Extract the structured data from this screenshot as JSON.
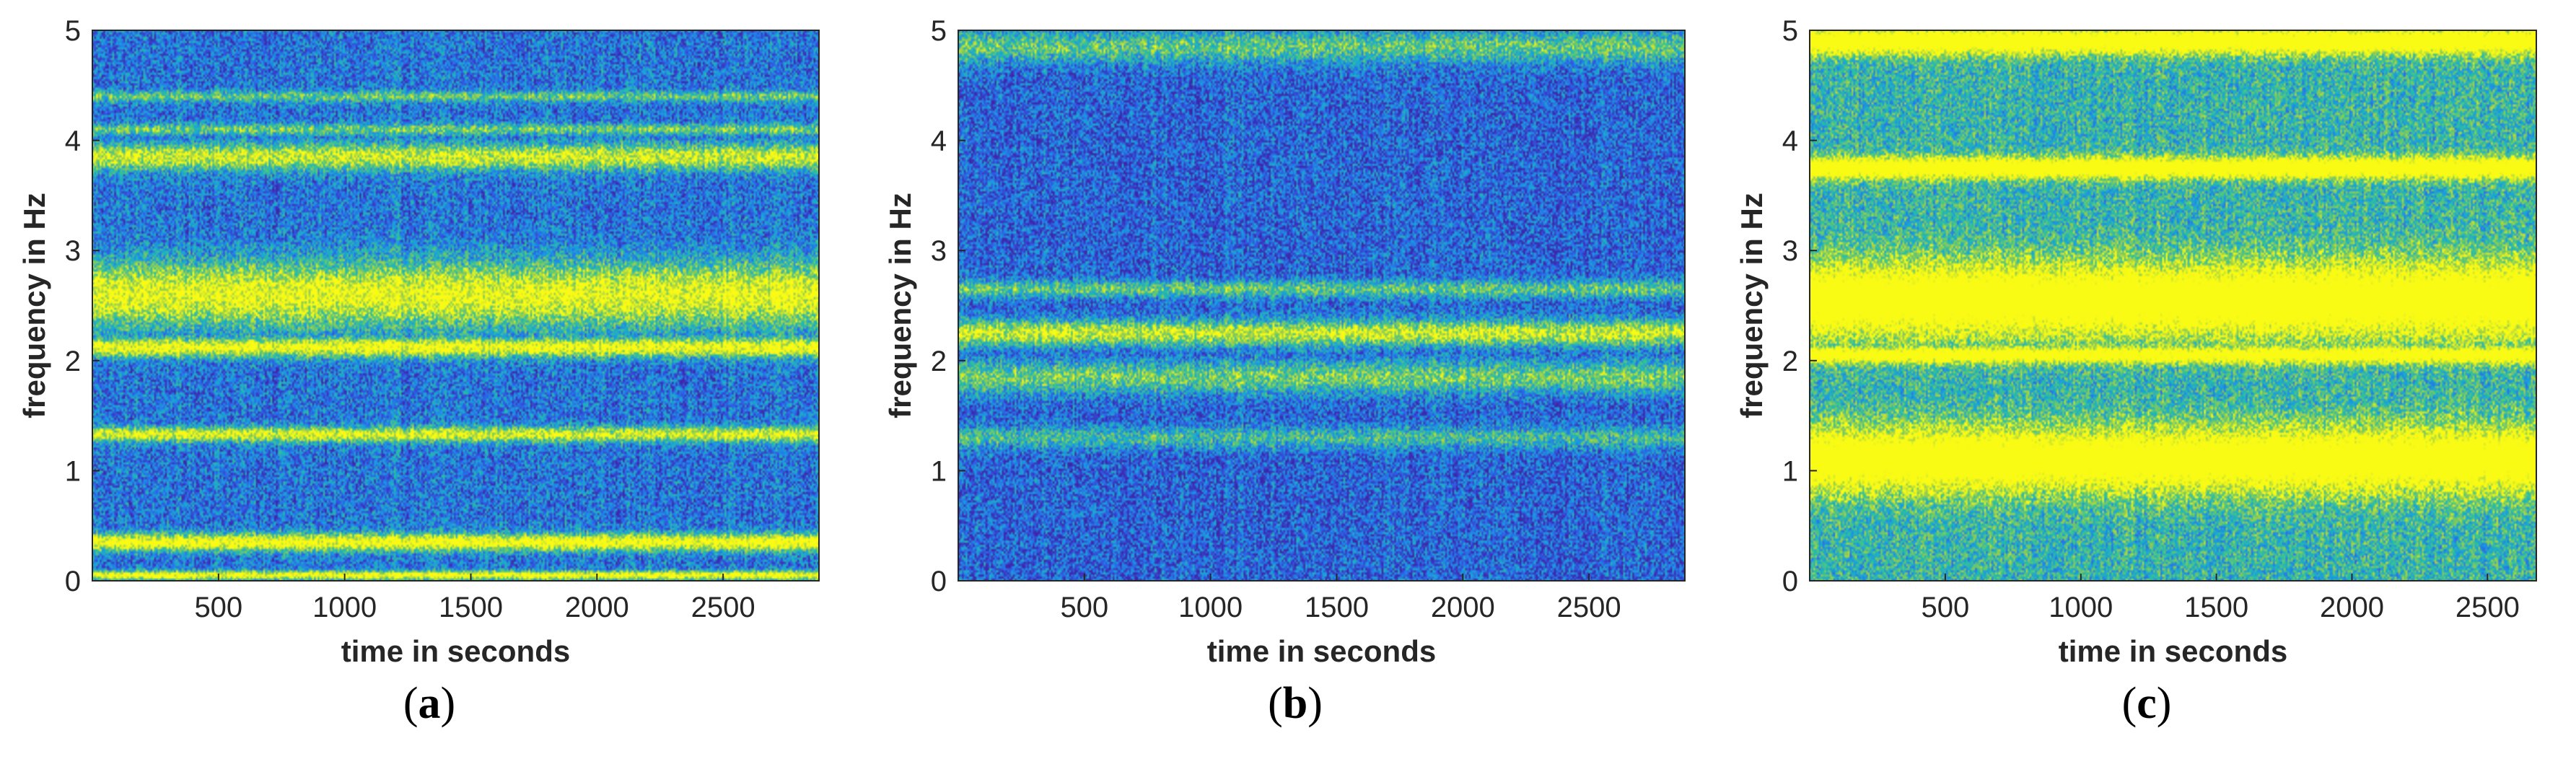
{
  "chart_data": [
    {
      "type": "heatmap",
      "caption_letter": "a",
      "xlabel": "time in seconds",
      "ylabel": "frequency in Hz",
      "xlim": [
        0,
        2880
      ],
      "ylim": [
        0,
        5
      ],
      "xticks": [
        500,
        1000,
        1500,
        2000,
        2500
      ],
      "yticks": [
        0,
        1,
        2,
        3,
        4,
        5
      ],
      "colormap": [
        "#3d26a8",
        "#2f5de6",
        "#1a9ce0",
        "#2cbfa0",
        "#95cc4e",
        "#f9fb15"
      ],
      "background_level": 0.28,
      "bands": [
        {
          "freq": 0.05,
          "width": 0.04,
          "intensity": 1.0
        },
        {
          "freq": 0.35,
          "width": 0.08,
          "intensity": 1.0
        },
        {
          "freq": 1.33,
          "width": 0.07,
          "intensity": 0.85
        },
        {
          "freq": 2.12,
          "width": 0.09,
          "intensity": 0.95
        },
        {
          "freq": 2.6,
          "width": 0.3,
          "intensity": 0.9
        },
        {
          "freq": 3.85,
          "width": 0.12,
          "intensity": 0.8
        },
        {
          "freq": 4.1,
          "width": 0.05,
          "intensity": 0.55
        },
        {
          "freq": 4.4,
          "width": 0.05,
          "intensity": 0.5
        }
      ]
    },
    {
      "type": "heatmap",
      "caption_letter": "b",
      "xlabel": "time in seconds",
      "ylabel": "frequency in Hz",
      "xlim": [
        0,
        2880
      ],
      "ylim": [
        0,
        5
      ],
      "xticks": [
        500,
        1000,
        1500,
        2000,
        2500
      ],
      "yticks": [
        0,
        1,
        2,
        3,
        4,
        5
      ],
      "colormap": [
        "#3d26a8",
        "#2f5de6",
        "#1a9ce0",
        "#2cbfa0",
        "#95cc4e",
        "#f9fb15"
      ],
      "background_level": 0.22,
      "bands": [
        {
          "freq": 2.25,
          "width": 0.12,
          "intensity": 0.85
        },
        {
          "freq": 1.85,
          "width": 0.15,
          "intensity": 0.6
        },
        {
          "freq": 2.65,
          "width": 0.08,
          "intensity": 0.55
        },
        {
          "freq": 1.3,
          "width": 0.1,
          "intensity": 0.45
        },
        {
          "freq": 4.85,
          "width": 0.15,
          "intensity": 0.55
        }
      ]
    },
    {
      "type": "heatmap",
      "caption_letter": "c",
      "xlabel": "time in seconds",
      "ylabel": "frequency in Hz",
      "xlim": [
        0,
        2680
      ],
      "ylim": [
        0,
        5
      ],
      "xticks": [
        500,
        1000,
        1500,
        2000,
        2500
      ],
      "yticks": [
        0,
        1,
        2,
        3,
        4,
        5
      ],
      "colormap": [
        "#3d26a8",
        "#2f5de6",
        "#1a9ce0",
        "#2cbfa0",
        "#95cc4e",
        "#f9fb15"
      ],
      "background_level": 0.55,
      "bands": [
        {
          "freq": 2.55,
          "width": 0.35,
          "intensity": 1.0
        },
        {
          "freq": 1.1,
          "width": 0.3,
          "intensity": 1.0
        },
        {
          "freq": 3.75,
          "width": 0.1,
          "intensity": 1.0
        },
        {
          "freq": 4.9,
          "width": 0.12,
          "intensity": 1.0
        },
        {
          "freq": 2.05,
          "width": 0.08,
          "intensity": 0.9
        }
      ]
    }
  ]
}
